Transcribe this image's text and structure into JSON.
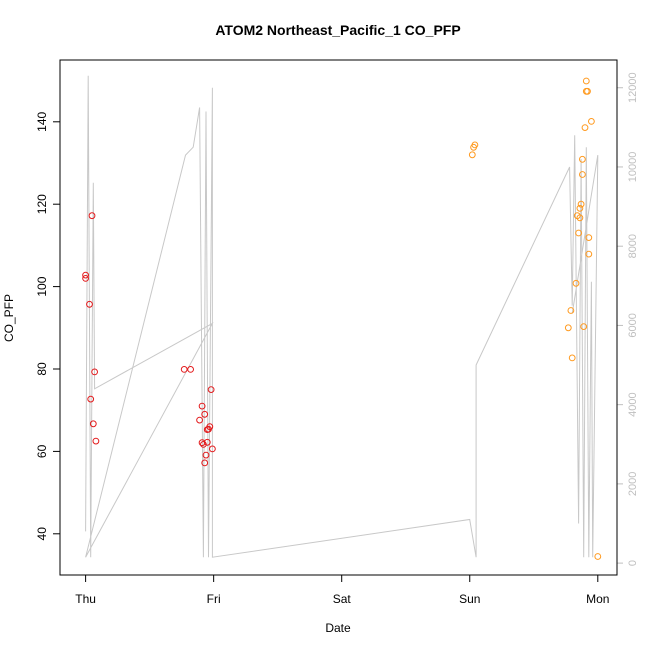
{
  "chart_data": {
    "type": "scatter",
    "title": "ATOM2 Northeast_Pacific_1 CO_PFP",
    "xlabel": "Date",
    "ylabel": "CO_PFP",
    "x_ticks": [
      "Thu",
      "Fri",
      "Sat",
      "Sun",
      "Mon"
    ],
    "x_range_days": [
      -0.2,
      4.15
    ],
    "ylim": [
      30,
      155
    ],
    "y_ticks": [
      40,
      60,
      80,
      100,
      120,
      140
    ],
    "y2lim": [
      -300,
      12700
    ],
    "y2_ticks": [
      0,
      2000,
      4000,
      6000,
      8000,
      10000,
      12000
    ],
    "colors": {
      "series_thu_fri": "#e31a1c",
      "series_sun_mon": "#ff9a1f",
      "altitude_line": "#c8c8c8",
      "right_axis": "#bfbfbf",
      "frame": "#000000"
    },
    "series": [
      {
        "color_key": "series_thu_fri",
        "points": [
          [
            0.0,
            102.8
          ],
          [
            0.0,
            102.0
          ],
          [
            0.03,
            95.7
          ],
          [
            0.04,
            72.7
          ],
          [
            0.05,
            117.2
          ],
          [
            0.06,
            66.7
          ],
          [
            0.07,
            79.3
          ],
          [
            0.08,
            62.5
          ],
          [
            0.77,
            79.9
          ],
          [
            0.82,
            79.9
          ],
          [
            0.89,
            67.6
          ],
          [
            0.91,
            71.0
          ],
          [
            0.91,
            62.1
          ],
          [
            0.92,
            61.7
          ],
          [
            0.93,
            69.0
          ],
          [
            0.93,
            57.2
          ],
          [
            0.94,
            59.1
          ],
          [
            0.95,
            65.3
          ],
          [
            0.95,
            62.2
          ],
          [
            0.96,
            65.4
          ],
          [
            0.97,
            66.0
          ],
          [
            0.98,
            75.0
          ],
          [
            0.99,
            60.6
          ]
        ]
      },
      {
        "color_key": "series_sun_mon",
        "points": [
          [
            3.02,
            132.0
          ],
          [
            3.03,
            133.8
          ],
          [
            3.04,
            134.4
          ],
          [
            3.77,
            90.0
          ],
          [
            3.79,
            94.2
          ],
          [
            3.8,
            82.7
          ],
          [
            3.83,
            100.8
          ],
          [
            3.84,
            117.2
          ],
          [
            3.85,
            113.0
          ],
          [
            3.86,
            116.7
          ],
          [
            3.86,
            119.0
          ],
          [
            3.87,
            120.0
          ],
          [
            3.88,
            130.9
          ],
          [
            3.88,
            127.2
          ],
          [
            3.89,
            90.3
          ],
          [
            3.9,
            138.6
          ],
          [
            3.91,
            147.4
          ],
          [
            3.91,
            149.9
          ],
          [
            3.92,
            147.4
          ],
          [
            3.93,
            111.9
          ],
          [
            3.93,
            107.9
          ],
          [
            3.95,
            140.1
          ],
          [
            4.0,
            34.5
          ]
        ]
      }
    ],
    "altitude_line": {
      "axis": "right",
      "points": [
        [
          0.0,
          800
        ],
        [
          0.02,
          12300
        ],
        [
          0.04,
          150
        ],
        [
          0.06,
          9600
        ],
        [
          0.07,
          4400
        ],
        [
          0.99,
          6050
        ],
        [
          0.0,
          150
        ],
        [
          0.78,
          10300
        ],
        [
          0.84,
          10500
        ],
        [
          0.89,
          11500
        ],
        [
          0.92,
          150
        ],
        [
          0.94,
          11400
        ],
        [
          0.96,
          150
        ],
        [
          0.99,
          12000
        ],
        [
          0.99,
          150
        ],
        [
          3.0,
          1100
        ],
        [
          3.05,
          150
        ],
        [
          3.05,
          5000
        ],
        [
          3.78,
          10000
        ],
        [
          3.8,
          6500
        ],
        [
          3.82,
          10800
        ],
        [
          3.85,
          1000
        ],
        [
          3.87,
          10200
        ],
        [
          3.89,
          150
        ],
        [
          3.91,
          10500
        ],
        [
          3.93,
          150
        ],
        [
          3.95,
          7100
        ],
        [
          3.96,
          150
        ],
        [
          4.0,
          10300
        ],
        [
          3.8,
          6300
        ]
      ]
    }
  }
}
